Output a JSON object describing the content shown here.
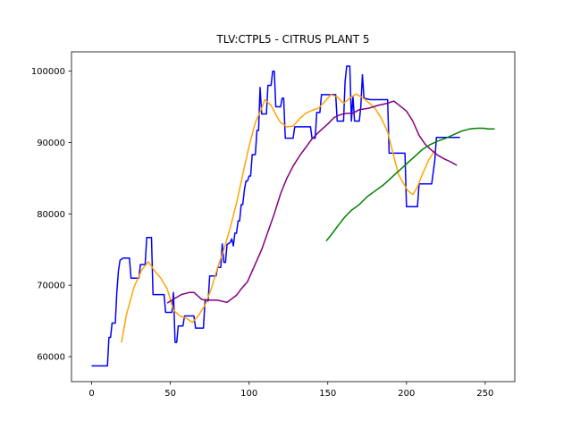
{
  "chart_data": {
    "type": "line",
    "title": "TLV:CTPL5 - CITRUS PLANT 5",
    "xlabel": "",
    "ylabel": "",
    "xlim": [
      -12.8,
      268.8
    ],
    "ylim": [
      56500,
      102700
    ],
    "xticks": [
      0,
      50,
      100,
      150,
      200,
      250
    ],
    "yticks": [
      60000,
      70000,
      80000,
      90000,
      100000
    ],
    "grid": false,
    "legend": "none",
    "series": [
      {
        "color": "#0000ff",
        "points": [
          [
            0,
            58700
          ],
          [
            10,
            58700
          ],
          [
            11,
            62700
          ],
          [
            12,
            62700
          ],
          [
            13,
            64700
          ],
          [
            15,
            64700
          ],
          [
            16,
            69000
          ],
          [
            17,
            72000
          ],
          [
            18,
            73500
          ],
          [
            20,
            73800
          ],
          [
            24,
            73800
          ],
          [
            25,
            71000
          ],
          [
            30,
            71000
          ],
          [
            31,
            72900
          ],
          [
            34,
            72900
          ],
          [
            35,
            76700
          ],
          [
            38,
            76700
          ],
          [
            39,
            68700
          ],
          [
            46,
            68700
          ],
          [
            47,
            66200
          ],
          [
            51,
            66200
          ],
          [
            52,
            69000
          ],
          [
            53,
            62000
          ],
          [
            54,
            62000
          ],
          [
            55,
            64300
          ],
          [
            58,
            64300
          ],
          [
            59,
            65700
          ],
          [
            65,
            65700
          ],
          [
            66,
            64000
          ],
          [
            70,
            64000
          ],
          [
            71,
            64000
          ],
          [
            72,
            67800
          ],
          [
            74,
            67800
          ],
          [
            75,
            71300
          ],
          [
            79,
            71300
          ],
          [
            80,
            72500
          ],
          [
            82,
            72500
          ],
          [
            83,
            75800
          ],
          [
            84,
            73200
          ],
          [
            85,
            73200
          ],
          [
            86,
            75700
          ],
          [
            88,
            76000
          ],
          [
            89,
            76500
          ],
          [
            90,
            75500
          ],
          [
            91,
            77300
          ],
          [
            92,
            77300
          ],
          [
            93,
            79000
          ],
          [
            94,
            79000
          ],
          [
            95,
            81300
          ],
          [
            96,
            81300
          ],
          [
            97,
            83300
          ],
          [
            98,
            84600
          ],
          [
            99,
            84600
          ],
          [
            100,
            85300
          ],
          [
            101,
            85300
          ],
          [
            102,
            88300
          ],
          [
            104,
            88300
          ],
          [
            105,
            91700
          ],
          [
            106,
            91700
          ],
          [
            107,
            97700
          ],
          [
            108,
            94000
          ],
          [
            111,
            94000
          ],
          [
            112,
            98000
          ],
          [
            114,
            98000
          ],
          [
            115,
            100000
          ],
          [
            116,
            100000
          ],
          [
            117,
            95000
          ],
          [
            120,
            95000
          ],
          [
            121,
            96200
          ],
          [
            122,
            96200
          ],
          [
            123,
            90600
          ],
          [
            128,
            90600
          ],
          [
            129,
            92200
          ],
          [
            139,
            92200
          ],
          [
            140,
            90600
          ],
          [
            142,
            90600
          ],
          [
            143,
            94200
          ],
          [
            145,
            94200
          ],
          [
            146,
            96700
          ],
          [
            155,
            96700
          ],
          [
            156,
            93000
          ],
          [
            160,
            93000
          ],
          [
            161,
            98500
          ],
          [
            162,
            100700
          ],
          [
            164,
            100700
          ],
          [
            165,
            93000
          ],
          [
            166,
            96500
          ],
          [
            167,
            93000
          ],
          [
            170,
            93000
          ],
          [
            171,
            95000
          ],
          [
            172,
            99500
          ],
          [
            173,
            96200
          ],
          [
            177,
            96000
          ],
          [
            188,
            96000
          ],
          [
            189,
            88500
          ],
          [
            199,
            88500
          ],
          [
            200,
            81000
          ],
          [
            207,
            81000
          ],
          [
            208,
            84200
          ],
          [
            215,
            84200
          ],
          [
            216,
            84200
          ],
          [
            218,
            87500
          ],
          [
            219,
            90700
          ],
          [
            228,
            90700
          ],
          [
            234,
            90700
          ]
        ]
      },
      {
        "color": "#ffa500",
        "points": [
          [
            19,
            62000
          ],
          [
            22,
            65800
          ],
          [
            27,
            69800
          ],
          [
            32,
            72200
          ],
          [
            36,
            73300
          ],
          [
            40,
            72000
          ],
          [
            44,
            71000
          ],
          [
            48,
            69500
          ],
          [
            52,
            66500
          ],
          [
            56,
            65700
          ],
          [
            60,
            65400
          ],
          [
            64,
            64800
          ],
          [
            68,
            65800
          ],
          [
            72,
            67200
          ],
          [
            76,
            69500
          ],
          [
            80,
            72500
          ],
          [
            84,
            75000
          ],
          [
            88,
            78000
          ],
          [
            92,
            81500
          ],
          [
            96,
            85500
          ],
          [
            100,
            89500
          ],
          [
            104,
            92800
          ],
          [
            108,
            94800
          ],
          [
            110,
            96000
          ],
          [
            114,
            95200
          ],
          [
            118,
            93500
          ],
          [
            120,
            92800
          ],
          [
            124,
            92200
          ],
          [
            128,
            92300
          ],
          [
            132,
            93300
          ],
          [
            136,
            94100
          ],
          [
            140,
            94500
          ],
          [
            144,
            94800
          ],
          [
            148,
            95700
          ],
          [
            152,
            96700
          ],
          [
            156,
            96400
          ],
          [
            160,
            95500
          ],
          [
            164,
            96200
          ],
          [
            168,
            96800
          ],
          [
            172,
            96300
          ],
          [
            176,
            95600
          ],
          [
            180,
            94800
          ],
          [
            184,
            93400
          ],
          [
            188,
            91500
          ],
          [
            192,
            88000
          ],
          [
            195,
            85500
          ],
          [
            198,
            84300
          ],
          [
            201,
            83200
          ],
          [
            204,
            82700
          ],
          [
            207,
            83800
          ],
          [
            210,
            85500
          ],
          [
            214,
            87500
          ],
          [
            218,
            88900
          ]
        ]
      },
      {
        "color": "#800080",
        "points": [
          [
            48,
            67500
          ],
          [
            53,
            68200
          ],
          [
            57,
            68700
          ],
          [
            62,
            69000
          ],
          [
            65,
            69000
          ],
          [
            70,
            68000
          ],
          [
            76,
            67900
          ],
          [
            80,
            67900
          ],
          [
            86,
            67600
          ],
          [
            92,
            68600
          ],
          [
            95,
            69500
          ],
          [
            99,
            70500
          ],
          [
            103,
            72500
          ],
          [
            108,
            75000
          ],
          [
            112,
            77500
          ],
          [
            116,
            80000
          ],
          [
            120,
            82800
          ],
          [
            124,
            85000
          ],
          [
            128,
            86700
          ],
          [
            132,
            88100
          ],
          [
            136,
            89300
          ],
          [
            140,
            90500
          ],
          [
            145,
            91600
          ],
          [
            150,
            92600
          ],
          [
            154,
            93500
          ],
          [
            158,
            93900
          ],
          [
            162,
            94100
          ],
          [
            166,
            94100
          ],
          [
            170,
            94600
          ],
          [
            176,
            94800
          ],
          [
            182,
            95200
          ],
          [
            188,
            95500
          ],
          [
            192,
            95800
          ],
          [
            196,
            95100
          ],
          [
            200,
            94400
          ],
          [
            204,
            93000
          ],
          [
            208,
            91000
          ],
          [
            212,
            89700
          ],
          [
            216,
            88900
          ],
          [
            220,
            88200
          ],
          [
            224,
            87700
          ],
          [
            228,
            87300
          ],
          [
            232,
            86800
          ]
        ]
      },
      {
        "color": "#008000",
        "points": [
          [
            149,
            76200
          ],
          [
            153,
            77300
          ],
          [
            157,
            78500
          ],
          [
            161,
            79600
          ],
          [
            165,
            80500
          ],
          [
            170,
            81300
          ],
          [
            175,
            82400
          ],
          [
            180,
            83200
          ],
          [
            185,
            84000
          ],
          [
            190,
            85000
          ],
          [
            195,
            86000
          ],
          [
            200,
            87000
          ],
          [
            205,
            88000
          ],
          [
            210,
            89000
          ],
          [
            215,
            89700
          ],
          [
            220,
            90200
          ],
          [
            225,
            90600
          ],
          [
            230,
            91100
          ],
          [
            235,
            91600
          ],
          [
            240,
            91900
          ],
          [
            245,
            92000
          ],
          [
            249,
            92000
          ],
          [
            252,
            91900
          ],
          [
            256,
            91900
          ]
        ]
      }
    ]
  }
}
